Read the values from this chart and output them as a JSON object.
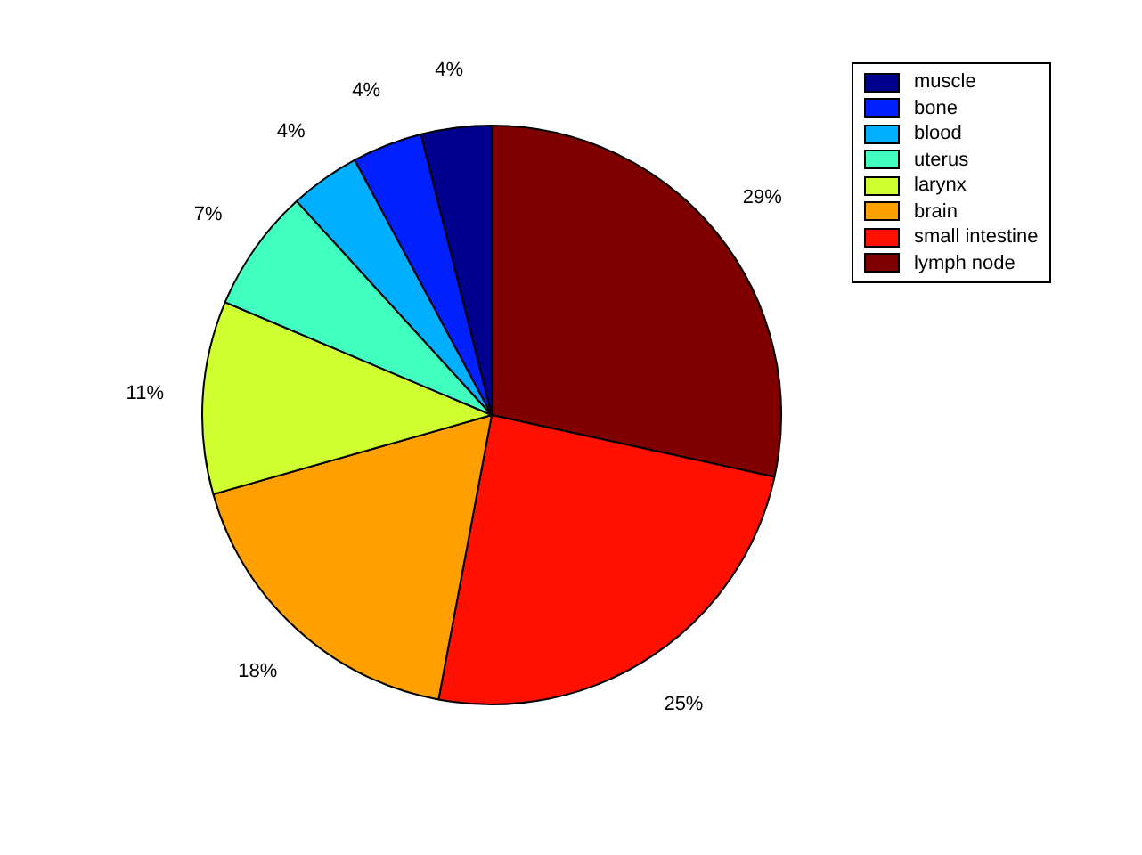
{
  "chart_data": {
    "type": "pie",
    "categories": [
      "muscle",
      "bone",
      "blood",
      "uterus",
      "larynx",
      "brain",
      "small intestine",
      "lymph node"
    ],
    "values": [
      4,
      4,
      4,
      7,
      11,
      18,
      25,
      29
    ],
    "value_labels": [
      "4%",
      "4%",
      "4%",
      "7%",
      "11%",
      "18%",
      "25%",
      "29%"
    ],
    "colors": [
      "#00008f",
      "#0020ff",
      "#00afff",
      "#40ffbf",
      "#cfff30",
      "#ffa000",
      "#ff1000",
      "#800000"
    ],
    "legend": "top right"
  }
}
